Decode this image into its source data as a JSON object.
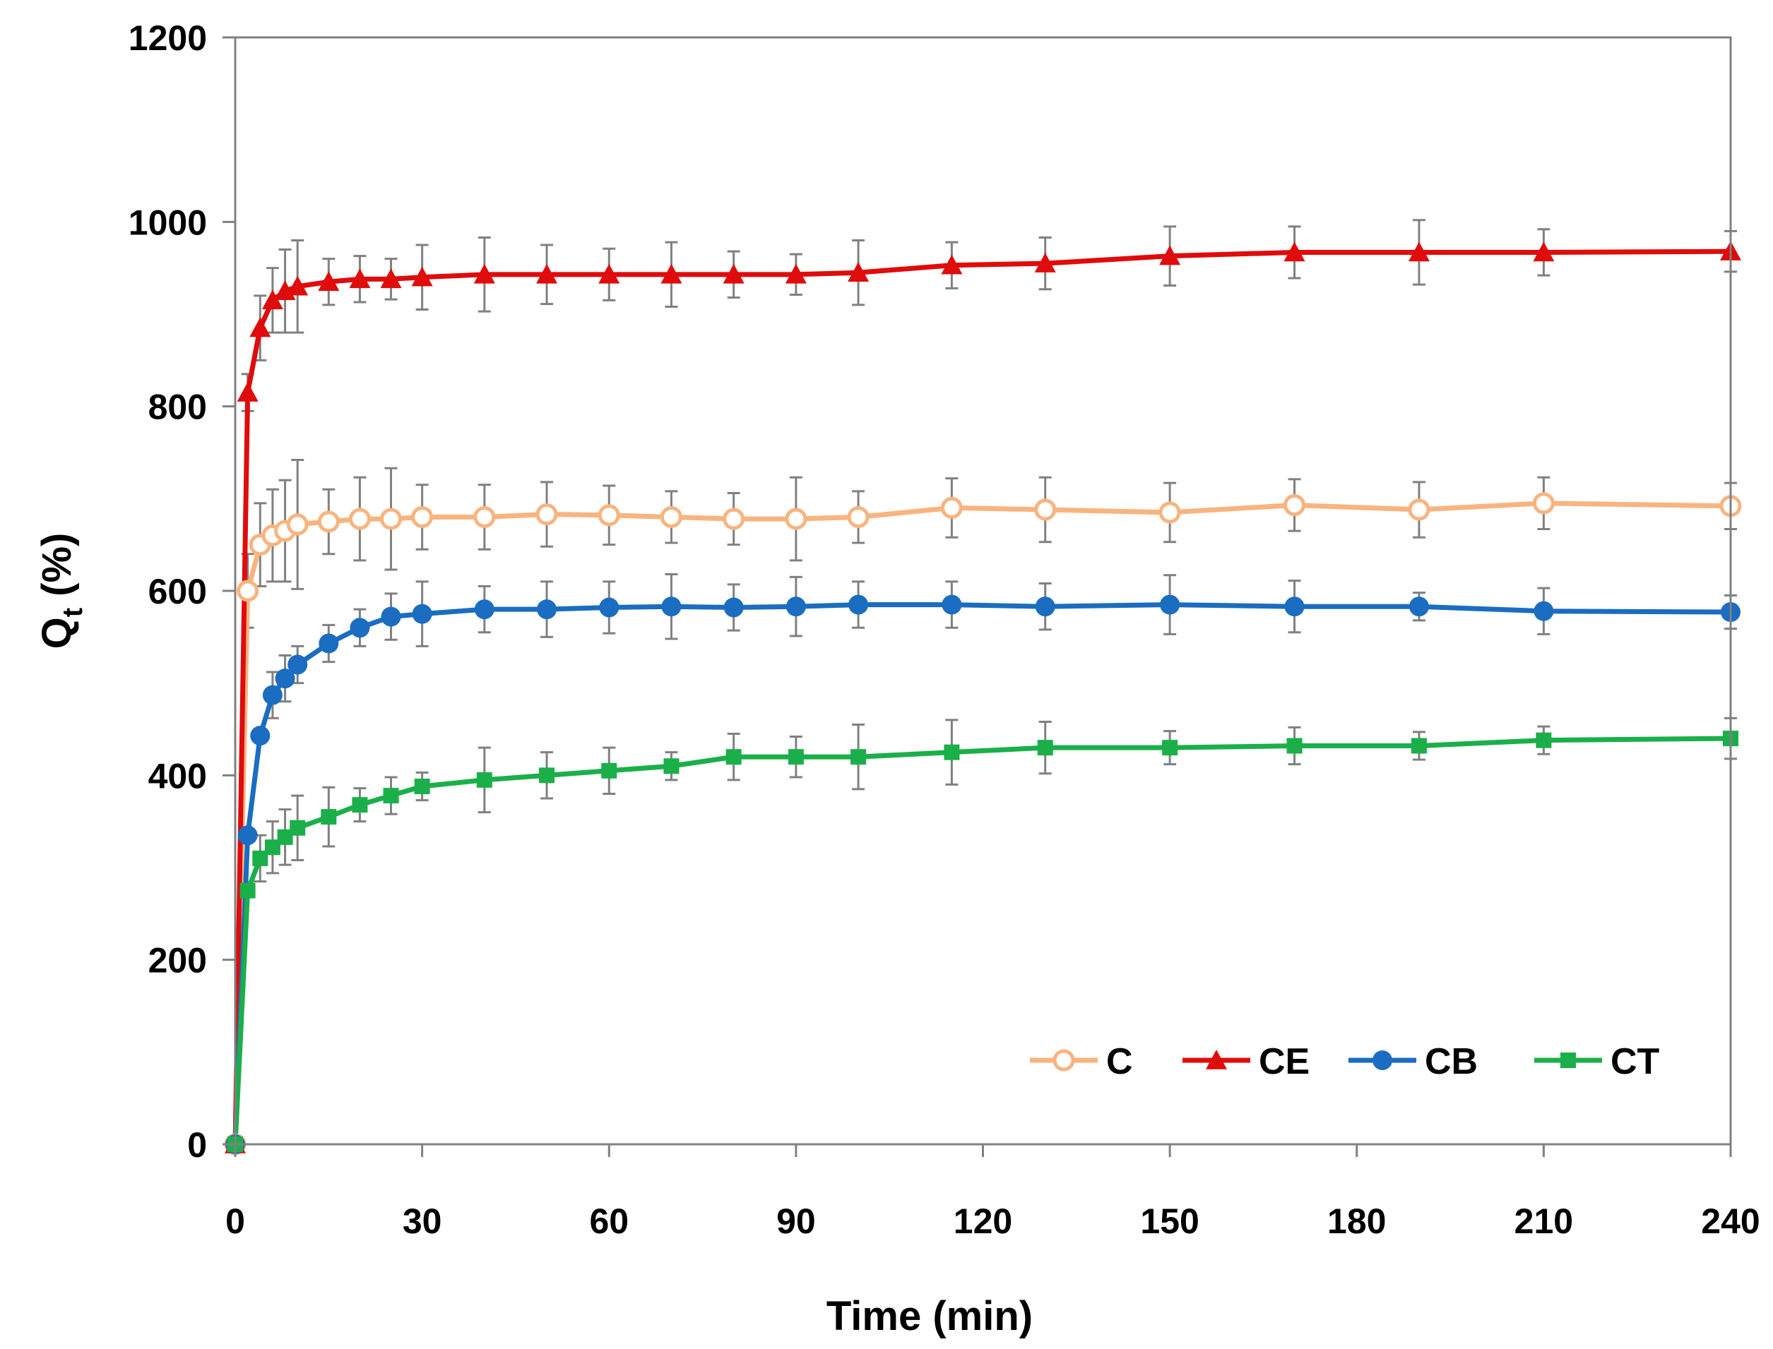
{
  "chart_data": {
    "type": "line",
    "title": "",
    "xlabel": "Time (min)",
    "ylabel_main": "Q",
    "ylabel_sub": "t",
    "ylabel_suffix": " (%)",
    "xlim": [
      0,
      240
    ],
    "ylim": [
      0,
      1200
    ],
    "xticks": [
      0,
      30,
      60,
      90,
      120,
      150,
      180,
      210,
      240
    ],
    "yticks": [
      0,
      200,
      400,
      600,
      800,
      1000,
      1200
    ],
    "grid": false,
    "legend_position": "bottom-right",
    "series": [
      {
        "name": "C",
        "color": "#F8B47F",
        "marker": "open-circle",
        "x": [
          0,
          2,
          4,
          6,
          8,
          10,
          15,
          20,
          25,
          30,
          40,
          50,
          60,
          70,
          80,
          90,
          100,
          115,
          130,
          150,
          170,
          190,
          210,
          240
        ],
        "y": [
          0,
          600,
          650,
          660,
          665,
          672,
          675,
          678,
          678,
          680,
          680,
          683,
          682,
          680,
          678,
          678,
          680,
          690,
          688,
          685,
          693,
          688,
          695,
          692
        ],
        "err": [
          0,
          40,
          45,
          50,
          55,
          70,
          35,
          45,
          55,
          35,
          35,
          35,
          32,
          28,
          28,
          45,
          28,
          32,
          35,
          32,
          28,
          30,
          28,
          25
        ]
      },
      {
        "name": "CE",
        "color": "#E00B0B",
        "marker": "triangle",
        "x": [
          0,
          2,
          4,
          6,
          8,
          10,
          15,
          20,
          25,
          30,
          40,
          50,
          60,
          70,
          80,
          90,
          100,
          115,
          130,
          150,
          170,
          190,
          210,
          240
        ],
        "y": [
          0,
          815,
          885,
          915,
          925,
          930,
          935,
          938,
          938,
          940,
          943,
          943,
          943,
          943,
          943,
          943,
          945,
          953,
          955,
          963,
          967,
          967,
          967,
          968
        ],
        "err": [
          0,
          20,
          35,
          35,
          45,
          50,
          25,
          25,
          22,
          35,
          40,
          32,
          28,
          35,
          25,
          22,
          35,
          25,
          28,
          32,
          28,
          35,
          25,
          22
        ]
      },
      {
        "name": "CB",
        "color": "#1A6DC0",
        "marker": "filled-circle",
        "x": [
          0,
          2,
          4,
          6,
          8,
          10,
          15,
          20,
          25,
          30,
          40,
          50,
          60,
          70,
          80,
          90,
          100,
          115,
          130,
          150,
          170,
          190,
          210,
          240
        ],
        "y": [
          0,
          335,
          443,
          487,
          505,
          520,
          543,
          560,
          572,
          575,
          580,
          580,
          582,
          583,
          582,
          583,
          585,
          585,
          583,
          585,
          583,
          583,
          578,
          577
        ],
        "err": [
          0,
          0,
          0,
          25,
          25,
          20,
          20,
          20,
          25,
          35,
          25,
          30,
          28,
          35,
          25,
          32,
          25,
          25,
          25,
          32,
          28,
          15,
          25,
          18
        ]
      },
      {
        "name": "CT",
        "color": "#1BAF4A",
        "marker": "square",
        "x": [
          0,
          2,
          4,
          6,
          8,
          10,
          15,
          20,
          25,
          30,
          40,
          50,
          60,
          70,
          80,
          90,
          100,
          115,
          130,
          150,
          170,
          190,
          210,
          240
        ],
        "y": [
          0,
          275,
          310,
          322,
          333,
          343,
          355,
          368,
          378,
          388,
          395,
          400,
          405,
          410,
          420,
          420,
          420,
          425,
          430,
          430,
          432,
          432,
          438,
          440
        ],
        "err": [
          0,
          0,
          25,
          28,
          30,
          35,
          32,
          18,
          20,
          15,
          35,
          25,
          25,
          15,
          25,
          22,
          35,
          35,
          28,
          18,
          20,
          15,
          15,
          22
        ]
      }
    ]
  }
}
